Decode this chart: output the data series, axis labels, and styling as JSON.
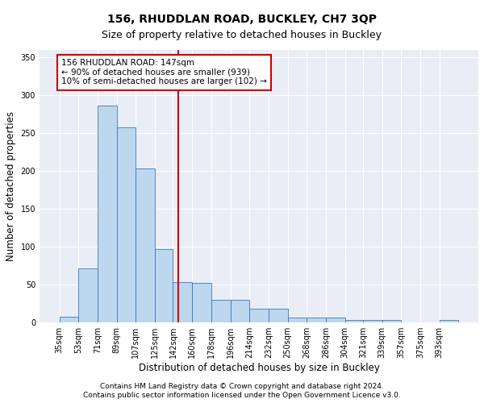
{
  "title": "156, RHUDDLAN ROAD, BUCKLEY, CH7 3QP",
  "subtitle": "Size of property relative to detached houses in Buckley",
  "xlabel": "Distribution of detached houses by size in Buckley",
  "ylabel": "Number of detached properties",
  "footnote1": "Contains HM Land Registry data © Crown copyright and database right 2024.",
  "footnote2": "Contains public sector information licensed under the Open Government Licence v3.0.",
  "bar_edges": [
    35,
    53,
    71,
    89,
    107,
    125,
    142,
    160,
    178,
    196,
    214,
    232,
    250,
    268,
    286,
    304,
    321,
    339,
    357,
    375,
    393
  ],
  "bar_values": [
    8,
    72,
    286,
    258,
    203,
    97,
    53,
    52,
    30,
    30,
    18,
    18,
    7,
    7,
    7,
    4,
    4,
    4,
    0,
    0,
    3
  ],
  "bar_color": "#bdd7ee",
  "bar_edge_color": "#4472c4",
  "vline_x": 147,
  "vline_color": "#cc0000",
  "annotation_text": "156 RHUDDLAN ROAD: 147sqm\n← 90% of detached houses are smaller (939)\n10% of semi-detached houses are larger (102) →",
  "annotation_box_color": "#cc0000",
  "ylim": [
    0,
    360
  ],
  "yticks": [
    0,
    50,
    100,
    150,
    200,
    250,
    300,
    350
  ],
  "plot_bg_color": "#e9eef6",
  "grid_color": "#ffffff",
  "figure_bg_color": "#ffffff",
  "title_fontsize": 10,
  "subtitle_fontsize": 9,
  "axis_label_fontsize": 8.5,
  "tick_fontsize": 7,
  "annotation_fontsize": 7.5,
  "footnote_fontsize": 6.5
}
